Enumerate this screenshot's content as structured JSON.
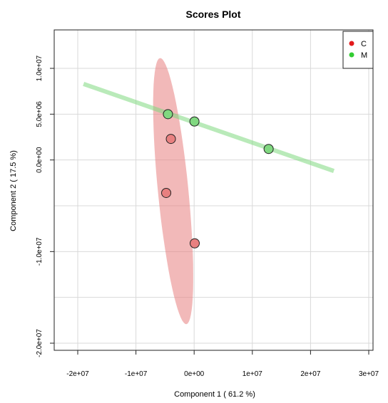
{
  "chart_data": {
    "type": "scatter",
    "title": "Scores Plot",
    "xlabel": "Component 1 ( 61.2 %)",
    "ylabel": "Component 2 ( 17.5 %)",
    "xlim": [
      -25000000,
      30000000
    ],
    "ylim": [
      -21000000,
      14000000
    ],
    "xticks": [
      -20000000,
      -10000000,
      0,
      10000000,
      20000000,
      30000000
    ],
    "xtick_labels": [
      "-2e+07",
      "-1e+07",
      "0e+00",
      "1e+07",
      "2e+07",
      "3e+07"
    ],
    "yticks": [
      10000000,
      5000000,
      0,
      -10000000,
      -20000000
    ],
    "ytick_labels": [
      "1.0e+07",
      "5.0e+06",
      "0.0e+00",
      "-1.0e+07",
      "-2.0e+07"
    ],
    "grid": true,
    "legend_position": "top-right",
    "series": [
      {
        "name": "C",
        "color": "#e31a1c",
        "fill": "#e88080",
        "points": [
          {
            "x": -4000000,
            "y": 2300000
          },
          {
            "x": -4800000,
            "y": -3600000
          },
          {
            "x": 100000,
            "y": -9100000
          }
        ],
        "ellipse": {
          "center_x": -3600000,
          "center_y": -3400000,
          "semi_major": 14700000,
          "semi_minor": 2600000,
          "angle_deg": 99
        }
      },
      {
        "name": "M",
        "color": "#33cc33",
        "fill": "#80d880",
        "points": [
          {
            "x": -4500000,
            "y": 5000000
          },
          {
            "x": 50000,
            "y": 4200000
          },
          {
            "x": 12800000,
            "y": 1200000
          }
        ],
        "trend_line": {
          "x": [
            -19000000,
            24000000
          ],
          "y": [
            8300000,
            -1200000
          ]
        }
      }
    ]
  }
}
